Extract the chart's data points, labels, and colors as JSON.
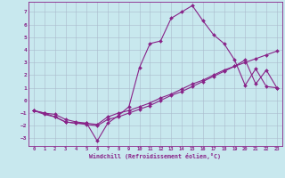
{
  "xlabel": "Windchill (Refroidissement éolien,°C)",
  "xlim": [
    -0.5,
    23.5
  ],
  "ylim": [
    -3.6,
    7.8
  ],
  "yticks": [
    -3,
    -2,
    -1,
    0,
    1,
    2,
    3,
    4,
    5,
    6,
    7
  ],
  "xticks": [
    0,
    1,
    2,
    3,
    4,
    5,
    6,
    7,
    8,
    9,
    10,
    11,
    12,
    13,
    14,
    15,
    16,
    17,
    18,
    19,
    20,
    21,
    22,
    23
  ],
  "bg_color": "#c8e8ee",
  "line_color": "#882288",
  "grid_color": "#aabbcc",
  "line1_x": [
    0,
    1,
    2,
    3,
    4,
    5,
    6,
    7,
    8,
    9,
    10,
    11,
    12,
    13,
    14,
    15,
    16,
    17,
    18,
    19,
    20,
    21,
    22,
    23
  ],
  "line1_y": [
    -0.8,
    -1.1,
    -1.3,
    -1.7,
    -1.8,
    -1.8,
    -3.2,
    -1.8,
    -1.2,
    -0.5,
    2.6,
    4.5,
    4.7,
    6.5,
    7.0,
    7.5,
    6.3,
    5.2,
    4.5,
    3.2,
    1.2,
    2.5,
    1.1,
    1.0
  ],
  "line2_x": [
    0,
    1,
    2,
    3,
    4,
    5,
    6,
    7,
    8,
    9,
    10,
    11,
    12,
    13,
    14,
    15,
    16,
    17,
    18,
    19,
    20,
    21,
    22,
    23
  ],
  "line2_y": [
    -0.8,
    -1.0,
    -1.3,
    -1.7,
    -1.8,
    -1.9,
    -2.0,
    -1.5,
    -1.3,
    -1.0,
    -0.7,
    -0.4,
    0.0,
    0.4,
    0.7,
    1.1,
    1.5,
    1.9,
    2.3,
    2.7,
    3.2,
    1.3,
    2.4,
    1.0
  ],
  "line3_x": [
    0,
    1,
    2,
    3,
    4,
    5,
    6,
    7,
    8,
    9,
    10,
    11,
    12,
    13,
    14,
    15,
    16,
    17,
    18,
    19,
    20,
    21,
    22,
    23
  ],
  "line3_y": [
    -0.8,
    -1.0,
    -1.1,
    -1.5,
    -1.7,
    -1.8,
    -1.9,
    -1.3,
    -1.0,
    -0.8,
    -0.5,
    -0.2,
    0.2,
    0.5,
    0.9,
    1.3,
    1.6,
    2.0,
    2.4,
    2.7,
    3.0,
    3.3,
    3.6,
    3.9
  ]
}
